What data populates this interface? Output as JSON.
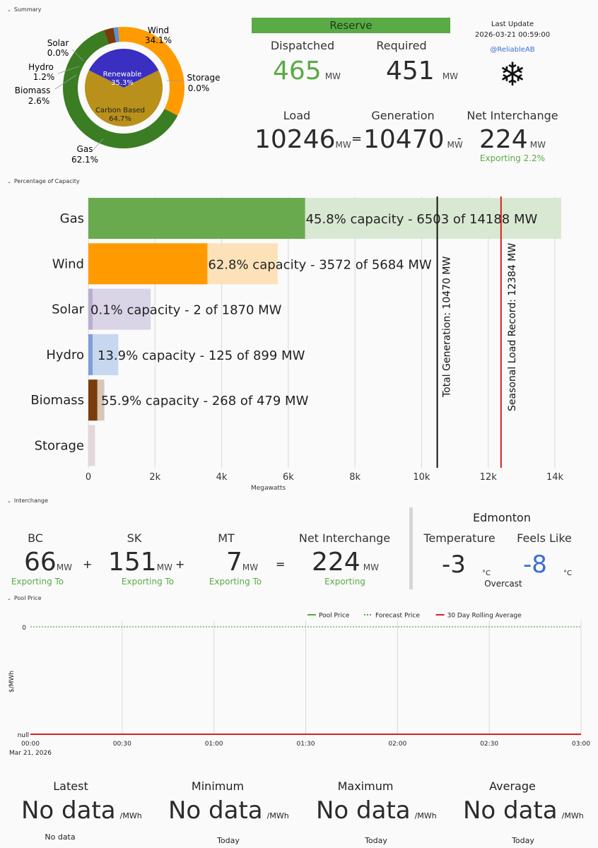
{
  "sections": {
    "summary": "Summary",
    "capacity": "Percentage of Capacity",
    "interchange": "Interchange",
    "pool": "Pool Price"
  },
  "donut": {
    "labels": [
      {
        "name": "Wind",
        "pct": "34.1%"
      },
      {
        "name": "Solar",
        "pct": "0.0%"
      },
      {
        "name": "Hydro",
        "pct": "1.2%"
      },
      {
        "name": "Biomass",
        "pct": "2.6%"
      },
      {
        "name": "Storage",
        "pct": "0.0%"
      },
      {
        "name": "Gas",
        "pct": "62.1%"
      }
    ],
    "inner": [
      {
        "name": "Renewable",
        "pct": "35.3%"
      },
      {
        "name": "Carbon Based",
        "pct": "64.7%"
      }
    ]
  },
  "reserve": {
    "title": "Reserve",
    "dispatched_label": "Dispatched",
    "dispatched": "465",
    "dispatched_unit": "MW",
    "required_label": "Required",
    "required": "451",
    "required_unit": "MW"
  },
  "update": {
    "label": "Last Update",
    "time": "2026-03-21 00:59:00",
    "handle": "@ReliableAB",
    "icon": "snowflake-icon"
  },
  "balance": {
    "load_label": "Load",
    "load": "10246",
    "load_unit": "MW",
    "eq": "=",
    "gen_label": "Generation",
    "gen": "10470",
    "gen_unit": "MW",
    "minus": "-",
    "net_label": "Net Interchange",
    "net": "224",
    "net_unit": "MW",
    "net_sub": "Exporting 2.2%"
  },
  "capacity": {
    "xlabel": "Megawatts",
    "ticks": [
      "0",
      "2k",
      "4k",
      "6k",
      "8k",
      "10k",
      "12k",
      "14k"
    ],
    "rows": [
      {
        "name": "Gas",
        "text": "45.8% capacity - 6503 of 14188 MW",
        "value": 6503,
        "cap": 14188,
        "color": "#6aaa4f",
        "bg": "#d9e8d2"
      },
      {
        "name": "Wind",
        "text": "62.8% capacity - 3572 of 5684 MW",
        "value": 3572,
        "cap": 5684,
        "color": "#ff9b00",
        "bg": "#fde2b9"
      },
      {
        "name": "Solar",
        "text": "0.1% capacity - 2 of 1870 MW",
        "value": 2,
        "cap": 1870,
        "color": "#b9aed2",
        "bg": "#d9d4e6"
      },
      {
        "name": "Hydro",
        "text": "13.9% capacity - 125 of 899 MW",
        "value": 125,
        "cap": 899,
        "color": "#7f9ed6",
        "bg": "#c8d7f0"
      },
      {
        "name": "Biomass",
        "text": "55.9% capacity - 268 of 479 MW",
        "value": 268,
        "cap": 479,
        "color": "#7a3c0c",
        "bg": "#d6c6b6"
      },
      {
        "name": "Storage",
        "text": "",
        "value": 0,
        "cap": 200,
        "color": "#c9b9c3",
        "bg": "#e1d7dd"
      }
    ],
    "total_label": "Total Generation: 10470 MW",
    "total_value": 10470,
    "record_label": "Seasonal Load Record: 12384 MW",
    "record_value": 12384
  },
  "interchange": {
    "items": [
      {
        "name": "BC",
        "value": "66",
        "unit": "MW",
        "sub": "Exporting To"
      },
      {
        "name": "SK",
        "value": "151",
        "unit": "MW",
        "sub": "Exporting To"
      },
      {
        "name": "MT",
        "value": "7",
        "unit": "MW",
        "sub": "Exporting To"
      }
    ],
    "plus": "+",
    "eq": "=",
    "net_label": "Net Interchange",
    "net": "224",
    "net_unit": "MW",
    "net_sub": "Exporting"
  },
  "weather": {
    "city": "Edmonton",
    "temp_label": "Temperature",
    "temp": "-3",
    "temp_unit": "°C",
    "feels_label": "Feels Like",
    "feels": "-8",
    "feels_unit": "°C",
    "condition": "Overcast"
  },
  "chart_data": {
    "type": "line",
    "legend": [
      "Pool Price",
      "Forecast Price",
      "30 Day Rolling Average"
    ],
    "ylabel": "$/MWh",
    "yticks": [
      "0",
      "null"
    ],
    "xticks": [
      "00:00",
      "00:30",
      "01:00",
      "01:30",
      "02:00",
      "02:30",
      "03:00"
    ],
    "xdate": "Mar 21, 2026",
    "series": [
      {
        "name": "Pool Price",
        "values": []
      },
      {
        "name": "Forecast Price",
        "values": [
          0,
          0,
          0,
          0,
          0,
          0,
          0
        ]
      },
      {
        "name": "30 Day Rolling Average",
        "values": [
          null,
          null,
          null,
          null,
          null,
          null,
          null
        ]
      }
    ],
    "colors": {
      "pool": "#5aaa46",
      "forecast": "#5aaa46",
      "avg": "#d62020"
    }
  },
  "price_stats": [
    {
      "label": "Latest",
      "value": "No data",
      "unit": "/MWh",
      "sub": "No data"
    },
    {
      "label": "Minimum",
      "value": "No data",
      "unit": "/MWh",
      "sub": "Today"
    },
    {
      "label": "Maximum",
      "value": "No data",
      "unit": "/MWh",
      "sub": "Today"
    },
    {
      "label": "Average",
      "value": "No data",
      "unit": "/MWh",
      "sub": "Today"
    }
  ]
}
